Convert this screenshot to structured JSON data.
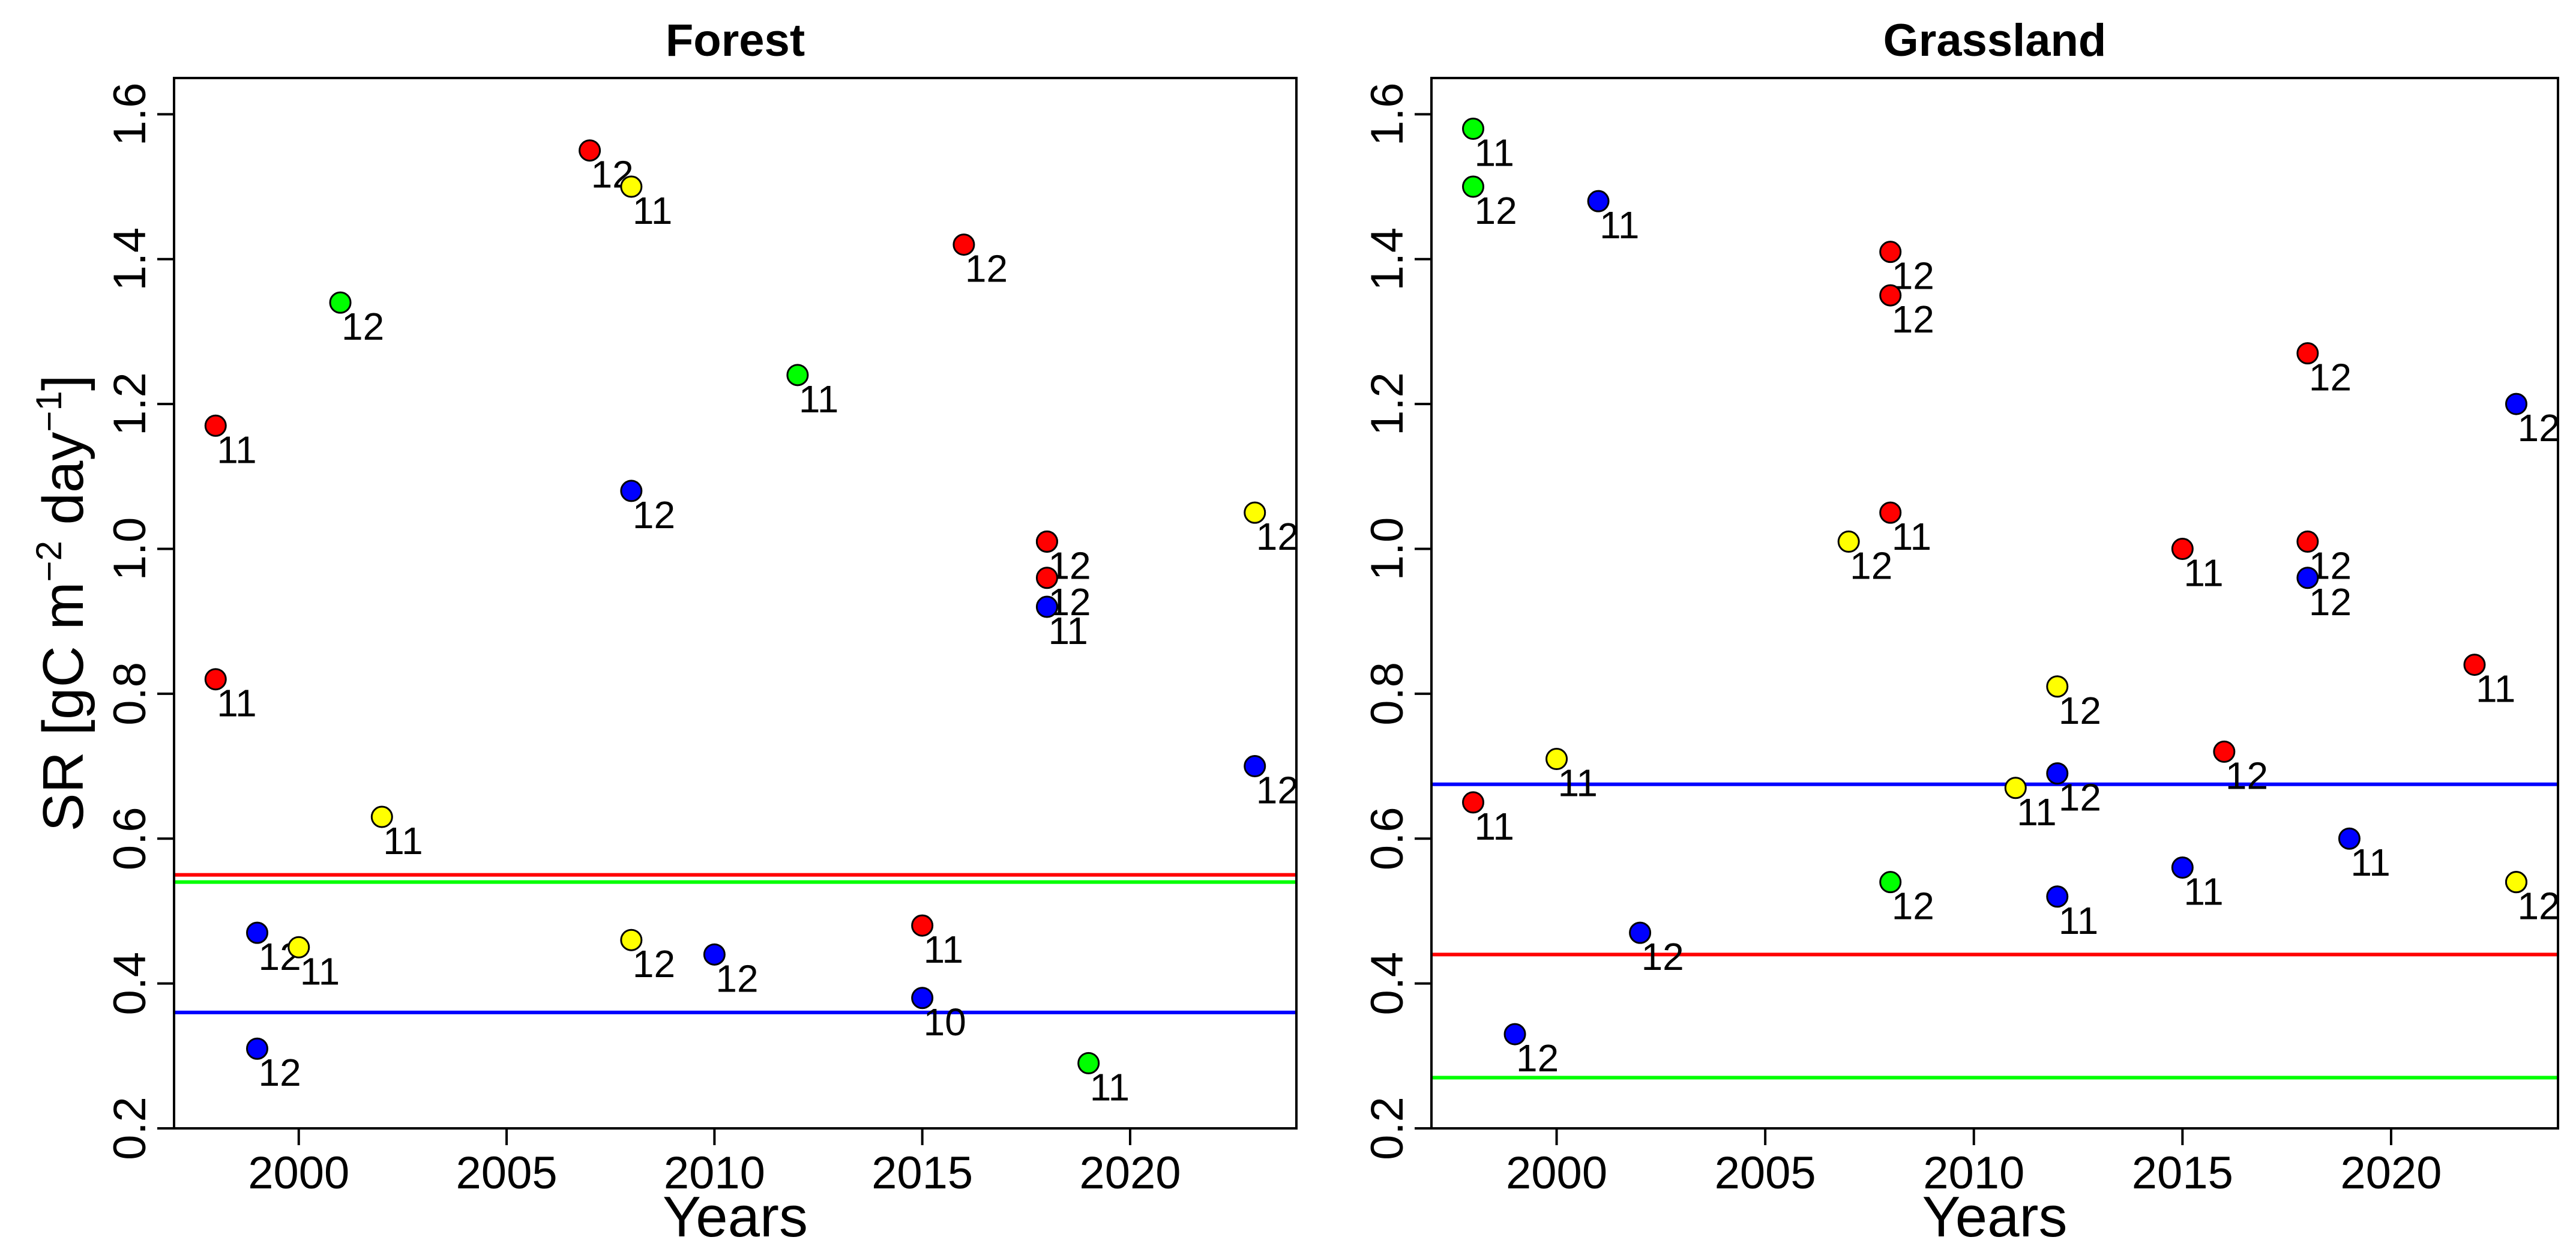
{
  "chart_data": {
    "type": "scatter",
    "ylabel": "SR [gC m−2 day−1]",
    "ylabel_parts": {
      "main": "SR [gC m",
      "sup1": "−2",
      "mid": " day",
      "sup2": "−1",
      "end": "]"
    },
    "colors": {
      "red": "#ff0000",
      "green": "#00ff00",
      "blue": "#0000ff",
      "yellow": "#ffff00"
    },
    "panels": [
      {
        "title": "Forest",
        "xlabel": "Years",
        "xlim": [
          1997,
          2024
        ],
        "ylim": [
          0.2,
          1.65
        ],
        "x_ticks": [
          2000,
          2005,
          2010,
          2015,
          2020
        ],
        "y_ticks": [
          "0.2",
          "0.4",
          "0.6",
          "0.8",
          "1.0",
          "1.2",
          "1.4",
          "1.6"
        ],
        "hlines": [
          {
            "color": "red",
            "y": 0.55
          },
          {
            "color": "green",
            "y": 0.54
          },
          {
            "color": "blue",
            "y": 0.36
          }
        ],
        "points": [
          {
            "x": 1998,
            "y": 1.17,
            "color": "red",
            "label": "11"
          },
          {
            "x": 1998,
            "y": 0.82,
            "color": "red",
            "label": "11"
          },
          {
            "x": 1999,
            "y": 0.47,
            "color": "blue",
            "label": "12"
          },
          {
            "x": 1999,
            "y": 0.31,
            "color": "blue",
            "label": "12"
          },
          {
            "x": 2000,
            "y": 0.45,
            "color": "yellow",
            "label": "11"
          },
          {
            "x": 2001,
            "y": 1.34,
            "color": "green",
            "label": "12"
          },
          {
            "x": 2002,
            "y": 0.63,
            "color": "yellow",
            "label": "11"
          },
          {
            "x": 2007,
            "y": 1.55,
            "color": "red",
            "label": "12"
          },
          {
            "x": 2008,
            "y": 1.5,
            "color": "yellow",
            "label": "11"
          },
          {
            "x": 2008,
            "y": 1.08,
            "color": "blue",
            "label": "12"
          },
          {
            "x": 2008,
            "y": 0.46,
            "color": "yellow",
            "label": "12"
          },
          {
            "x": 2010,
            "y": 0.44,
            "color": "blue",
            "label": "12"
          },
          {
            "x": 2012,
            "y": 1.24,
            "color": "green",
            "label": "11"
          },
          {
            "x": 2015,
            "y": 0.48,
            "color": "red",
            "label": "11"
          },
          {
            "x": 2015,
            "y": 0.38,
            "color": "blue",
            "label": "10"
          },
          {
            "x": 2016,
            "y": 1.42,
            "color": "red",
            "label": "12"
          },
          {
            "x": 2018,
            "y": 1.01,
            "color": "yellow",
            "label": "12"
          },
          {
            "x": 2018,
            "y": 1.01,
            "color": "red",
            "label": "12"
          },
          {
            "x": 2018,
            "y": 0.96,
            "color": "red",
            "label": "12"
          },
          {
            "x": 2018,
            "y": 0.92,
            "color": "blue",
            "label": "11"
          },
          {
            "x": 2019,
            "y": 0.29,
            "color": "green",
            "label": "11"
          },
          {
            "x": 2023,
            "y": 1.05,
            "color": "yellow",
            "label": "12"
          },
          {
            "x": 2023,
            "y": 0.7,
            "color": "blue",
            "label": "12"
          }
        ]
      },
      {
        "title": "Grassland",
        "xlabel": "Years",
        "xlim": [
          1997,
          2024
        ],
        "ylim": [
          0.2,
          1.65
        ],
        "x_ticks": [
          2000,
          2005,
          2010,
          2015,
          2020
        ],
        "y_ticks": [
          "0.2",
          "0.4",
          "0.6",
          "0.8",
          "1.0",
          "1.2",
          "1.4",
          "1.6"
        ],
        "hlines": [
          {
            "color": "blue",
            "y": 0.675
          },
          {
            "color": "red",
            "y": 0.44
          },
          {
            "color": "green",
            "y": 0.27
          }
        ],
        "points": [
          {
            "x": 1998,
            "y": 1.58,
            "color": "green",
            "label": "11"
          },
          {
            "x": 1998,
            "y": 1.5,
            "color": "green",
            "label": "12"
          },
          {
            "x": 1998,
            "y": 0.65,
            "color": "red",
            "label": "11"
          },
          {
            "x": 1999,
            "y": 0.33,
            "color": "blue",
            "label": "12"
          },
          {
            "x": 2000,
            "y": 0.71,
            "color": "yellow",
            "label": "11"
          },
          {
            "x": 2001,
            "y": 1.48,
            "color": "blue",
            "label": "11"
          },
          {
            "x": 2002,
            "y": 0.47,
            "color": "blue",
            "label": "12"
          },
          {
            "x": 2007,
            "y": 1.01,
            "color": "yellow",
            "label": "12"
          },
          {
            "x": 2008,
            "y": 1.41,
            "color": "red",
            "label": "12"
          },
          {
            "x": 2008,
            "y": 1.35,
            "color": "red",
            "label": "12"
          },
          {
            "x": 2008,
            "y": 1.05,
            "color": "red",
            "label": "11"
          },
          {
            "x": 2008,
            "y": 0.54,
            "color": "green",
            "label": "12"
          },
          {
            "x": 2011,
            "y": 0.67,
            "color": "yellow",
            "label": "11"
          },
          {
            "x": 2012,
            "y": 0.81,
            "color": "yellow",
            "label": "12"
          },
          {
            "x": 2012,
            "y": 0.69,
            "color": "blue",
            "label": "12"
          },
          {
            "x": 2012,
            "y": 0.52,
            "color": "blue",
            "label": "11"
          },
          {
            "x": 2015,
            "y": 1.0,
            "color": "red",
            "label": "11"
          },
          {
            "x": 2015,
            "y": 0.56,
            "color": "blue",
            "label": "11"
          },
          {
            "x": 2016,
            "y": 0.72,
            "color": "red",
            "label": "12"
          },
          {
            "x": 2018,
            "y": 1.27,
            "color": "red",
            "label": "12"
          },
          {
            "x": 2018,
            "y": 1.01,
            "color": "red",
            "label": "12"
          },
          {
            "x": 2018,
            "y": 0.96,
            "color": "blue",
            "label": "12"
          },
          {
            "x": 2019,
            "y": 0.6,
            "color": "blue",
            "label": "11"
          },
          {
            "x": 2022,
            "y": 0.84,
            "color": "red",
            "label": "11"
          },
          {
            "x": 2023,
            "y": 1.2,
            "color": "blue",
            "label": "12"
          },
          {
            "x": 2023,
            "y": 0.54,
            "color": "yellow",
            "label": "12"
          },
          {
            "x": 2023,
            "y": 0.54,
            "color": "yellow",
            "label": "12"
          }
        ]
      }
    ]
  }
}
